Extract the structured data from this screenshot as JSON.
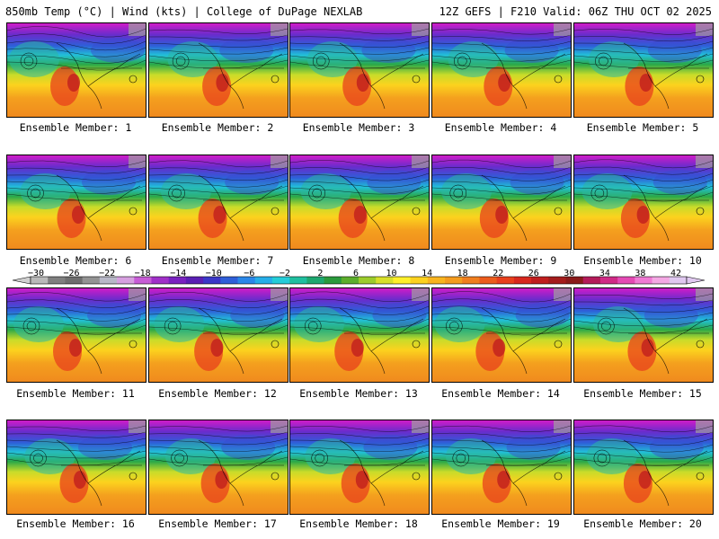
{
  "header": {
    "left": "850mb Temp (°C) | Wind (kts) | College of DuPage NEXLAB",
    "right": "12Z GEFS | F210 Valid: 06Z THU OCT 02 2025"
  },
  "members": [
    "Ensemble Member: 1",
    "Ensemble Member: 2",
    "Ensemble Member: 3",
    "Ensemble Member: 4",
    "Ensemble Member: 5",
    "Ensemble Member: 6",
    "Ensemble Member: 7",
    "Ensemble Member: 8",
    "Ensemble Member: 9",
    "Ensemble Member: 10",
    "Ensemble Member: 11",
    "Ensemble Member: 12",
    "Ensemble Member: 13",
    "Ensemble Member: 14",
    "Ensemble Member: 15",
    "Ensemble Member: 16",
    "Ensemble Member: 17",
    "Ensemble Member: 18",
    "Ensemble Member: 19",
    "Ensemble Member: 20"
  ],
  "colorbar": {
    "labels": [
      "-30",
      "-26",
      "-22",
      "-18",
      "-14",
      "-10",
      "-6",
      "-2",
      "2",
      "6",
      "10",
      "14",
      "18",
      "22",
      "26",
      "30",
      "34",
      "38",
      "42"
    ],
    "colors": [
      "#b9b9b9",
      "#7f7f7f",
      "#6e6e6e",
      "#939393",
      "#b8b8c8",
      "#d7a0e0",
      "#c75cd6",
      "#a030c8",
      "#7a22c0",
      "#5a1fb4",
      "#3b37c8",
      "#2f5fd8",
      "#2a87e8",
      "#26aee8",
      "#24cdd8",
      "#1fbf9f",
      "#1ea870",
      "#2a9a3c",
      "#5cae2c",
      "#9ccc2c",
      "#d8e02a",
      "#fff02a",
      "#fcd21e",
      "#f8b41e",
      "#f49c1e",
      "#f07e1e",
      "#ec5c1c",
      "#e8401c",
      "#d8281e",
      "#c01e1e",
      "#a41c1c",
      "#8a1a1a",
      "#b41a5a",
      "#d02a86",
      "#e44ab4",
      "#f07ad4",
      "#f4a8e4",
      "#e0c8f0"
    ]
  }
}
